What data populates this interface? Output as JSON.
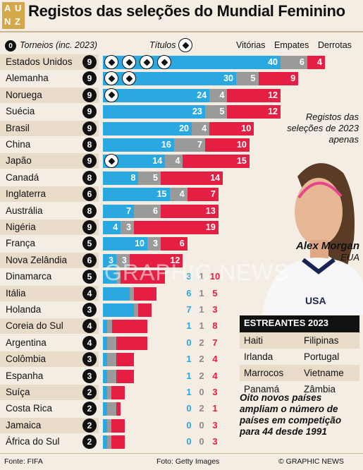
{
  "title": "Registos das seleções do Mundial Feminino",
  "logo_letters": [
    "A",
    "U",
    "N",
    "Z"
  ],
  "headers": {
    "badge_sample": "0",
    "torneios": "Torneios (inc. 2023)",
    "titulos": "Títulos",
    "vitorias": "Vitórias",
    "empates": "Empates",
    "derrotas": "Derrotas"
  },
  "side_note": "Registos das seleções de 2023 apenas",
  "player": {
    "name": "Alex Morgan",
    "country": "EUA",
    "shirt": "USA"
  },
  "estreantes": {
    "heading": "ESTREANTES 2023",
    "rows": [
      [
        "Haiti",
        "Filipinas"
      ],
      [
        "Irlanda",
        "Portugal"
      ],
      [
        "Marrocos",
        "Vietname"
      ],
      [
        "Panamá",
        "Zâmbia"
      ]
    ]
  },
  "note": "Oito novos países ampliam o número de países em competição para 44 desde 1991",
  "footer": {
    "source": "Fonte: FIFA",
    "photo": "Foto: Getty Images",
    "credit": "© GRAPHIC NEWS"
  },
  "watermark": "GRAPHIC NEWS",
  "colors": {
    "vitorias": "#29a9e0",
    "empates": "#9a9a9a",
    "derrotas": "#e51f43",
    "band": "#e8dcc8",
    "background": "#f4ede3"
  },
  "chart_data": {
    "type": "bar",
    "stacked": true,
    "orientation": "horizontal",
    "categories": [
      "Estados Unidos",
      "Alemanha",
      "Noruega",
      "Suécia",
      "Brasil",
      "China",
      "Japão",
      "Canadá",
      "Inglaterra",
      "Austrália",
      "Nigéria",
      "França",
      "Nova Zelândia",
      "Dinamarca",
      "Itália",
      "Holanda",
      "Coreia do Sul",
      "Argentina",
      "Colômbia",
      "Espanha",
      "Suíça",
      "Costa Rica",
      "Jamaica",
      "África do Sul"
    ],
    "tournaments": [
      9,
      9,
      9,
      9,
      9,
      8,
      9,
      8,
      6,
      8,
      9,
      5,
      6,
      5,
      4,
      3,
      4,
      4,
      3,
      3,
      2,
      2,
      2,
      2
    ],
    "titles": [
      4,
      2,
      1,
      0,
      0,
      0,
      1,
      0,
      0,
      0,
      0,
      0,
      0,
      0,
      0,
      0,
      0,
      0,
      0,
      0,
      0,
      0,
      0,
      0
    ],
    "series": [
      {
        "name": "Vitórias",
        "values": [
          40,
          30,
          24,
          23,
          20,
          16,
          14,
          8,
          15,
          7,
          4,
          10,
          3,
          3,
          6,
          7,
          1,
          0,
          1,
          1,
          1,
          0,
          0,
          0
        ]
      },
      {
        "name": "Empates",
        "values": [
          6,
          5,
          4,
          5,
          4,
          7,
          4,
          5,
          4,
          6,
          3,
          3,
          3,
          1,
          1,
          1,
          1,
          2,
          2,
          2,
          0,
          2,
          0,
          0
        ]
      },
      {
        "name": "Derrotas",
        "values": [
          4,
          9,
          12,
          12,
          10,
          10,
          15,
          14,
          7,
          13,
          19,
          6,
          12,
          10,
          5,
          3,
          8,
          7,
          4,
          4,
          3,
          1,
          3,
          3
        ]
      }
    ]
  }
}
